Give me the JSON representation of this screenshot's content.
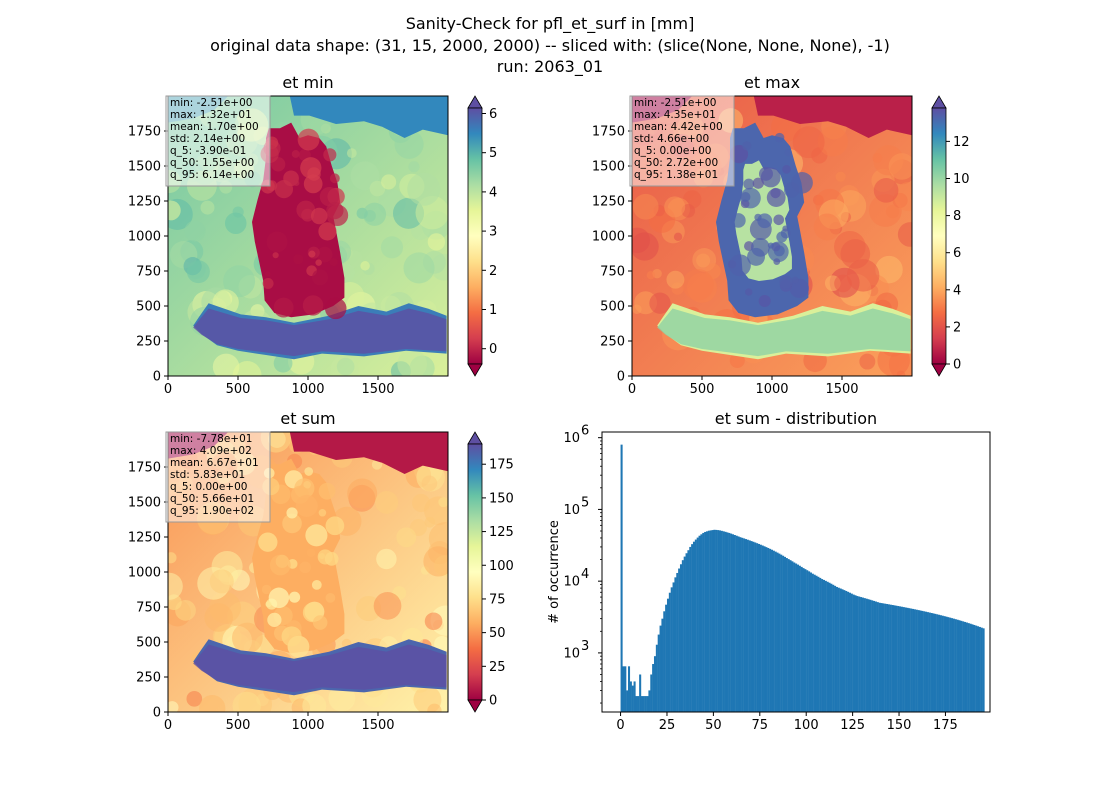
{
  "figure": {
    "title_lines": [
      "Sanity-Check for pfl_et_surf in [mm]",
      "original data shape: (31, 15, 2000, 2000) -- sliced with: (slice(None, None, None), -1)",
      "run: 2063_01"
    ]
  },
  "colormap": {
    "name": "Spectral",
    "stops": [
      "#9e0142",
      "#d53e4f",
      "#f46d43",
      "#fdae61",
      "#fee08b",
      "#ffffbf",
      "#e6f598",
      "#abdda4",
      "#66c2a5",
      "#3288bd",
      "#5e4fa2"
    ]
  },
  "hist_color": "#1f77b4",
  "chart_data": [
    {
      "type": "heatmap",
      "title": "et min",
      "xlim": [
        0,
        2000
      ],
      "ylim": [
        0,
        2000
      ],
      "x_ticks": [
        "0",
        "500",
        "1000",
        "1500"
      ],
      "y_ticks": [
        "0",
        "250",
        "500",
        "750",
        "1000",
        "1250",
        "1500",
        "1750"
      ],
      "colorbar": {
        "range": [
          -0.39,
          6.14
        ],
        "extend": "both",
        "ticks": [
          "0",
          "1",
          "2",
          "3",
          "4",
          "5",
          "6"
        ]
      },
      "stats": [
        "min: -2.51e+00",
        "max: 1.32e+01",
        "mean: 1.70e+00",
        "std: 2.14e+00",
        "q_5: -3.90e-01",
        "q_50: 1.55e+00",
        "q_95: 6.14e+00"
      ]
    },
    {
      "type": "heatmap",
      "title": "et max",
      "xlim": [
        0,
        2000
      ],
      "ylim": [
        0,
        2000
      ],
      "x_ticks": [
        "0",
        "500",
        "1000",
        "1500"
      ],
      "y_ticks": [
        "0",
        "250",
        "500",
        "750",
        "1000",
        "1250",
        "1500",
        "1750"
      ],
      "colorbar": {
        "range": [
          0.0,
          13.8
        ],
        "extend": "both",
        "ticks": [
          "0",
          "2",
          "4",
          "6",
          "8",
          "10",
          "12"
        ]
      },
      "stats": [
        "min: -2.51e+00",
        "max: 4.35e+01",
        "mean: 4.42e+00",
        "std: 4.66e+00",
        "q_5: 0.00e+00",
        "q_50: 2.72e+00",
        "q_95: 1.38e+01"
      ]
    },
    {
      "type": "heatmap",
      "title": "et sum",
      "xlim": [
        0,
        2000
      ],
      "ylim": [
        0,
        2000
      ],
      "x_ticks": [
        "0",
        "500",
        "1000",
        "1500"
      ],
      "y_ticks": [
        "0",
        "250",
        "500",
        "750",
        "1000",
        "1250",
        "1500",
        "1750"
      ],
      "colorbar": {
        "range": [
          0.0,
          190
        ],
        "extend": "both",
        "ticks": [
          "0",
          "25",
          "50",
          "75",
          "100",
          "125",
          "150",
          "175"
        ]
      },
      "stats": [
        "min: -7.78e+01",
        "max: 4.09e+02",
        "mean: 6.67e+01",
        "std: 5.83e+01",
        "q_5: 0.00e+00",
        "q_50: 5.66e+01",
        "q_95: 1.90e+02"
      ]
    },
    {
      "type": "bar",
      "title": "et sum - distribution",
      "ylabel": "# of occurrence",
      "yscale": "log",
      "xlim": [
        -10,
        199
      ],
      "ylim": [
        150,
        1200000
      ],
      "x_ticks": [
        "0",
        "25",
        "50",
        "75",
        "100",
        "125",
        "150",
        "175"
      ],
      "y_ticks": [
        "10^3",
        "10^4",
        "10^5",
        "10^6"
      ],
      "bin_width": 1,
      "bin_start": 0,
      "counts": [
        800000,
        650,
        650,
        300,
        650,
        400,
        350,
        400,
        250,
        250,
        500,
        250,
        250,
        250,
        250,
        300,
        500,
        700,
        900,
        1300,
        1800,
        2400,
        3000,
        3800,
        4700,
        5700,
        6900,
        8200,
        9600,
        11300,
        13000,
        15000,
        17200,
        19600,
        22000,
        24500,
        27000,
        30000,
        32800,
        35500,
        38000,
        40500,
        43000,
        45000,
        47000,
        48500,
        49500,
        50500,
        51000,
        51500,
        52000,
        51800,
        51500,
        51000,
        50300,
        49500,
        48700,
        47800,
        47000,
        46000,
        45000,
        44000,
        43000,
        42000,
        41000,
        40200,
        39400,
        38600,
        37800,
        37000,
        36200,
        35400,
        34600,
        33800,
        33000,
        32200,
        31400,
        30600,
        29800,
        29000,
        28200,
        27400,
        26600,
        25800,
        25000,
        24200,
        23400,
        22600,
        21800,
        21000,
        20300,
        19600,
        18900,
        18200,
        17600,
        17000,
        16400,
        15800,
        15200,
        14700,
        14200,
        13700,
        13200,
        12700,
        12300,
        11900,
        11500,
        11100,
        10700,
        10400,
        10100,
        9800,
        9500,
        9200,
        8900,
        8600,
        8300,
        8100,
        7900,
        7700,
        7500,
        7300,
        7100,
        6900,
        6700,
        6500,
        6350,
        6200,
        6100,
        6000,
        5900,
        5800,
        5700,
        5600,
        5500,
        5400,
        5300,
        5200,
        5100,
        5000,
        4950,
        4900,
        4850,
        4800,
        4750,
        4700,
        4650,
        4600,
        4550,
        4500,
        4450,
        4400,
        4350,
        4300,
        4250,
        4200,
        4150,
        4100,
        4050,
        4000,
        3950,
        3900,
        3850,
        3800,
        3750,
        3700,
        3650,
        3600,
        3550,
        3500,
        3450,
        3400,
        3350,
        3300,
        3250,
        3200,
        3150,
        3100,
        3050,
        3000,
        2950,
        2900,
        2850,
        2800,
        2750,
        2700,
        2650,
        2600,
        2550,
        2500,
        2450,
        2400,
        2350,
        2300,
        2250,
        2200
      ]
    }
  ]
}
